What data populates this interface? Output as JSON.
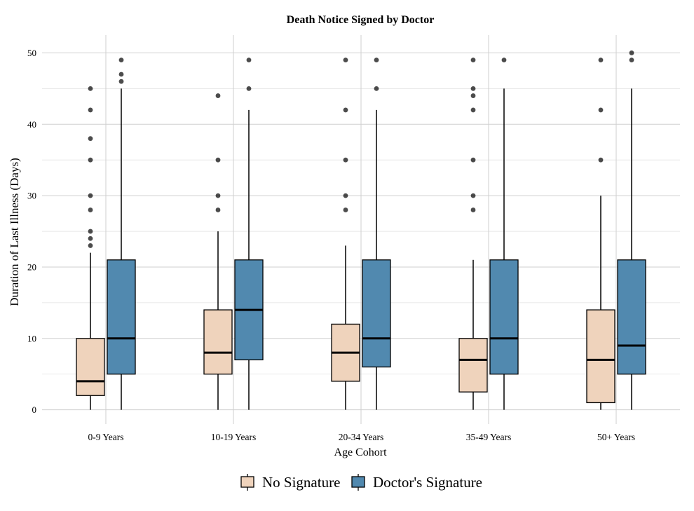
{
  "chart_data": {
    "type": "boxplot",
    "title": "Death Notice Signed by Doctor",
    "xlabel": "Age Cohort",
    "ylabel": "Duration of Last Illness (Days)",
    "ylim": [
      -2,
      52.5
    ],
    "yticks": [
      0,
      10,
      20,
      30,
      40,
      50
    ],
    "grid": true,
    "legend_position": "bottom",
    "categories": [
      "0-9 Years",
      "10-19 Years",
      "20-34 Years",
      "35-49 Years",
      "50+ Years"
    ],
    "series": [
      {
        "name": "No Signature",
        "color": "#efd3bc",
        "boxes": [
          {
            "whisker_low": 0,
            "q1": 2,
            "median": 4,
            "q3": 10,
            "whisker_high": 22,
            "outliers": [
              23,
              24,
              25,
              28,
              30,
              35,
              38,
              42,
              45
            ]
          },
          {
            "whisker_low": 0,
            "q1": 5,
            "median": 8,
            "q3": 14,
            "whisker_high": 25,
            "outliers": [
              28,
              30,
              35,
              44
            ]
          },
          {
            "whisker_low": 0,
            "q1": 4,
            "median": 8,
            "q3": 12,
            "whisker_high": 23,
            "outliers": [
              28,
              30,
              35,
              42,
              49
            ]
          },
          {
            "whisker_low": 0,
            "q1": 2.5,
            "median": 7,
            "q3": 10,
            "whisker_high": 21,
            "outliers": [
              28,
              30,
              35,
              42,
              44,
              45,
              49
            ]
          },
          {
            "whisker_low": 0,
            "q1": 1,
            "median": 7,
            "q3": 14,
            "whisker_high": 30,
            "outliers": [
              35,
              42,
              49
            ]
          }
        ]
      },
      {
        "name": "Doctor's Signature",
        "color": "#5189af",
        "boxes": [
          {
            "whisker_low": 0,
            "q1": 5,
            "median": 10,
            "q3": 21,
            "whisker_high": 45,
            "outliers": [
              46,
              47,
              49
            ]
          },
          {
            "whisker_low": 0,
            "q1": 7,
            "median": 14,
            "q3": 21,
            "whisker_high": 42,
            "outliers": [
              45,
              49
            ]
          },
          {
            "whisker_low": 0,
            "q1": 6,
            "median": 10,
            "q3": 21,
            "whisker_high": 42,
            "outliers": [
              45,
              49
            ]
          },
          {
            "whisker_low": 0,
            "q1": 5,
            "median": 10,
            "q3": 21,
            "whisker_high": 45,
            "outliers": [
              49
            ]
          },
          {
            "whisker_low": 0,
            "q1": 5,
            "median": 9,
            "q3": 21,
            "whisker_high": 45,
            "outliers": [
              49,
              50
            ]
          }
        ]
      }
    ]
  }
}
